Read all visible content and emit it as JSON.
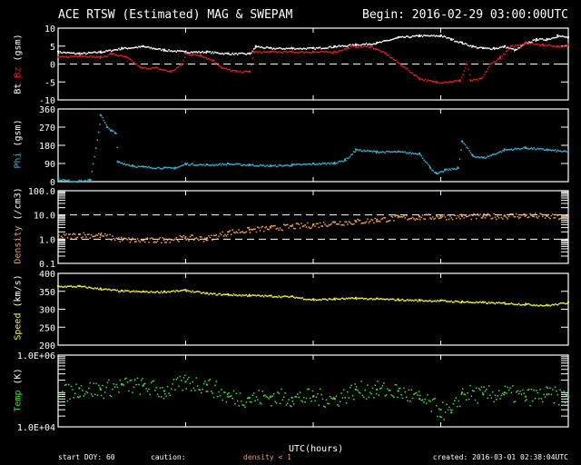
{
  "header": {
    "title": "ACE RTSW (Estimated) MAG & SWEPAM",
    "begin": "Begin: 2016-02-29 03:00:00UTC"
  },
  "footer": {
    "start_doy": "start DOY:  60",
    "caution": "caution:",
    "density_note": "density < 1",
    "xlabel": "UTC(hours)",
    "created": "created: 2016-03-01 02:38:04UTC"
  },
  "ylabels": {
    "bt": "Bt",
    "bz": "Bz",
    "gsm1": "(gsm)",
    "phi": "Phi",
    "gsm2": "(gsm)",
    "density": "Density",
    "density_unit": "(/cm3)",
    "speed": "Speed",
    "speed_unit": "(km/s)",
    "temp": "Temp",
    "temp_unit": "(K)"
  },
  "colors": {
    "bt": "#ffffff",
    "bz": "#e02020",
    "phi": "#3ab0d0",
    "density": "#f0a050",
    "speed": "#f0f040",
    "temp": "#40e040"
  },
  "chart_data": [
    {
      "type": "scatter",
      "name": "mag",
      "ylabel": "Bt Bz (gsm)",
      "scale": "linear",
      "ylim": [
        -10,
        10
      ],
      "yticks": [
        -10,
        -5,
        0,
        5,
        10
      ],
      "ticklabels": [
        "-10",
        "-5",
        "0",
        "5",
        "10"
      ],
      "dashed_lines": [
        0
      ],
      "xlim": [
        0,
        24
      ],
      "series": [
        {
          "name": "Bt",
          "color": "#ffffff",
          "x": [
            0,
            1,
            2,
            3,
            4,
            5,
            6,
            7,
            8,
            9,
            9.3,
            10,
            11,
            12,
            13,
            14,
            15,
            16,
            17,
            18,
            18.5,
            19,
            19.5,
            20,
            20.5,
            21,
            21.5,
            22,
            22.5,
            23,
            23.5,
            24
          ],
          "y": [
            3.5,
            3,
            3.5,
            4.5,
            5,
            4,
            3.5,
            3.5,
            3,
            3,
            5,
            4.5,
            4.5,
            4.5,
            5,
            5.5,
            6,
            7.5,
            8,
            8,
            7,
            6,
            5,
            4.5,
            4.5,
            5,
            4,
            6,
            7,
            7,
            8,
            7.5
          ]
        },
        {
          "name": "Bz",
          "color": "#e02020",
          "x": [
            0,
            1,
            2,
            2.5,
            3.2,
            3.9,
            4.6,
            5.3,
            5.8,
            6,
            6.7,
            7.3,
            7.7,
            8.4,
            9,
            9.2,
            10,
            11,
            12,
            13,
            13.8,
            14.7,
            15.4,
            16.1,
            17,
            17.8,
            18.9,
            19.2,
            19.4,
            19.9,
            20.3,
            20.8,
            21.3,
            22,
            22.8,
            23.5,
            24
          ],
          "y": [
            2,
            2.5,
            2,
            3,
            2,
            -1,
            -1,
            -2,
            0,
            3,
            2.5,
            1,
            -1,
            -2,
            -2,
            3.5,
            3.5,
            3.5,
            3.5,
            3.5,
            5,
            5,
            3,
            0,
            -4,
            -5,
            -4.5,
            0,
            -4.5,
            -4,
            0,
            2,
            5,
            6,
            5.5,
            5,
            5.5
          ]
        }
      ]
    },
    {
      "type": "scatter",
      "name": "phi",
      "ylabel": "Phi (gsm)",
      "scale": "linear",
      "ylim": [
        0,
        360
      ],
      "yticks": [
        0,
        90,
        180,
        270,
        360
      ],
      "ticklabels": [
        "0",
        "90",
        "180",
        "270",
        "360"
      ],
      "dashed_lines": [],
      "xlim": [
        0,
        24
      ],
      "series": [
        {
          "name": "Phi",
          "color": "#3ab0d0",
          "x": [
            0,
            0.5,
            1,
            1.5,
            2,
            2.3,
            2.5,
            2.7,
            2.8,
            3.5,
            4,
            5,
            5.5,
            6,
            7,
            8,
            9,
            10,
            11,
            12,
            13,
            13.5,
            14,
            15,
            16,
            17,
            17.5,
            17.8,
            18.2,
            18.8,
            19,
            19.5,
            20,
            21,
            22,
            23,
            24
          ],
          "y": [
            15,
            5,
            5,
            10,
            330,
            270,
            255,
            240,
            100,
            80,
            75,
            70,
            70,
            90,
            85,
            90,
            85,
            80,
            85,
            90,
            95,
            110,
            160,
            150,
            150,
            140,
            70,
            40,
            60,
            70,
            200,
            130,
            120,
            160,
            170,
            160,
            150
          ]
        }
      ]
    },
    {
      "type": "scatter",
      "name": "density",
      "ylabel": "Density (/cm3)",
      "scale": "log",
      "ylim": [
        0.1,
        100
      ],
      "yticks": [
        0.1,
        1,
        10,
        100
      ],
      "ticklabels": [
        "0.1",
        "1.0",
        "10.0",
        "100.0"
      ],
      "dashed_lines": [
        1,
        10
      ],
      "xlim": [
        0,
        24
      ],
      "series": [
        {
          "name": "Density",
          "color": "#f0a050",
          "x": [
            0,
            1,
            2,
            3,
            4,
            5,
            6,
            7,
            8,
            9,
            10,
            11,
            12,
            13,
            14,
            15,
            16,
            17,
            18,
            19,
            20,
            21,
            22,
            23,
            24
          ],
          "y": [
            1.3,
            1.6,
            1.5,
            1,
            0.9,
            1,
            1.2,
            1.1,
            2,
            2.5,
            3,
            3.5,
            4,
            5,
            5.5,
            6.5,
            8,
            8.5,
            9,
            9,
            9,
            9.5,
            10,
            9,
            8
          ]
        }
      ]
    },
    {
      "type": "scatter",
      "name": "speed",
      "ylabel": "Speed (km/s)",
      "scale": "linear",
      "ylim": [
        200,
        400
      ],
      "yticks": [
        200,
        250,
        300,
        350,
        400
      ],
      "ticklabels": [
        "200",
        "250",
        "300",
        "350",
        "400"
      ],
      "dashed_lines": [],
      "xlim": [
        0,
        24
      ],
      "series": [
        {
          "name": "Speed",
          "color": "#f0f040",
          "x": [
            0,
            1,
            2,
            3,
            4,
            5,
            6,
            7,
            8,
            9,
            10,
            11,
            12,
            13,
            14,
            15,
            16,
            17,
            18,
            19,
            20,
            21,
            22,
            23,
            24
          ],
          "y": [
            365,
            365,
            358,
            352,
            350,
            350,
            354,
            345,
            342,
            340,
            338,
            336,
            328,
            330,
            332,
            330,
            328,
            326,
            325,
            322,
            320,
            318,
            315,
            312,
            320
          ]
        }
      ]
    },
    {
      "type": "scatter",
      "name": "temp",
      "ylabel": "Temp (K)",
      "scale": "log",
      "ylim": [
        10000,
        1000000
      ],
      "yticks": [
        10000,
        1000000
      ],
      "ticklabels": [
        "1.0E+04",
        "1.0E+06"
      ],
      "dashed_lines": [],
      "xlim": [
        0,
        24
      ],
      "series": [
        {
          "name": "Temp",
          "color": "#40e040",
          "x": [
            0,
            1,
            2,
            3,
            4,
            5,
            6,
            7,
            8,
            9,
            10,
            11,
            12,
            13,
            14,
            15,
            16,
            17,
            18,
            18.5,
            19,
            20,
            21,
            22,
            23,
            24
          ],
          "y": [
            80000,
            120000,
            110000,
            150000,
            140000,
            100000,
            180000,
            150000,
            70000,
            65000,
            70000,
            65000,
            70000,
            60000,
            110000,
            110000,
            100000,
            60000,
            30000,
            25000,
            90000,
            80000,
            90000,
            70000,
            80000,
            70000
          ]
        }
      ]
    }
  ]
}
